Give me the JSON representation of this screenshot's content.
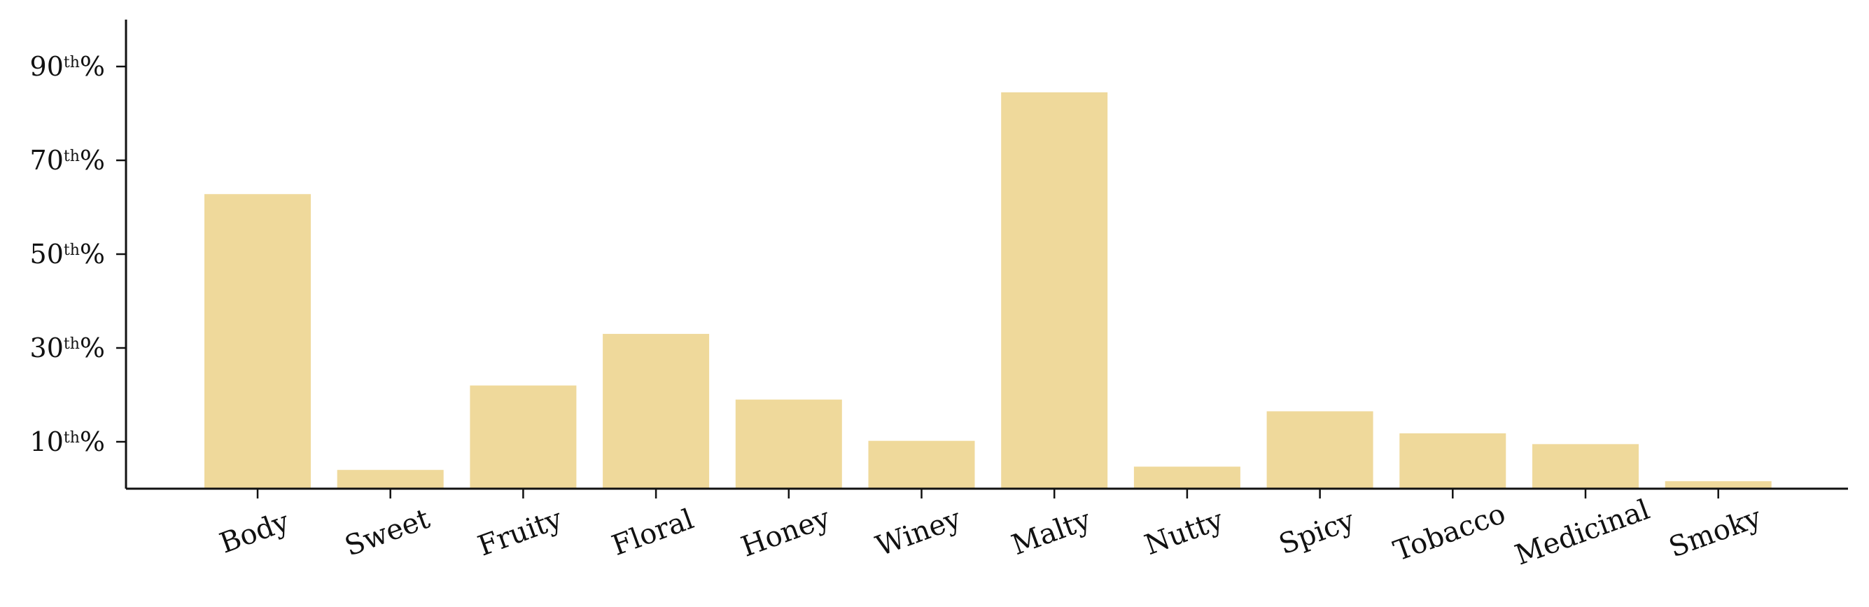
{
  "chart_data": {
    "type": "bar",
    "title": "",
    "xlabel": "",
    "ylabel": "",
    "categories": [
      "Body",
      "Sweet",
      "Fruity",
      "Floral",
      "Honey",
      "Winey",
      "Malty",
      "Nutty",
      "Spicy",
      "Tobacco",
      "Medicinal",
      "Smoky"
    ],
    "values": [
      62.8,
      4.0,
      22.0,
      33.0,
      19.0,
      10.2,
      84.5,
      4.7,
      16.5,
      11.8,
      9.5,
      1.6
    ],
    "ylim": [
      0,
      100
    ],
    "yticks": [
      {
        "value": 10,
        "num": "10",
        "sup": "th",
        "suffix": "%"
      },
      {
        "value": 30,
        "num": "30",
        "sup": "th",
        "suffix": "%"
      },
      {
        "value": 50,
        "num": "50",
        "sup": "th",
        "suffix": "%"
      },
      {
        "value": 70,
        "num": "70",
        "sup": "th",
        "suffix": "%"
      },
      {
        "value": 90,
        "num": "90",
        "sup": "th",
        "suffix": "%"
      }
    ],
    "bar_color": "#efd99b",
    "axis_color": "#111111",
    "grid": false,
    "xtick_rotation_deg": -20
  }
}
